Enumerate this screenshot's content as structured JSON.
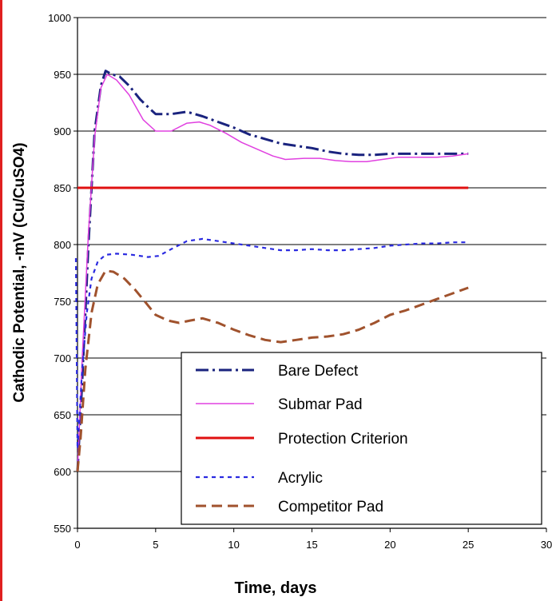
{
  "chart_data": {
    "type": "line",
    "title": "",
    "xlabel": "Time, days",
    "ylabel": "Cathodic Potential, -mV (Cu/CuSO4)",
    "xlim": [
      0,
      30
    ],
    "ylim": [
      550,
      1000
    ],
    "xticks": [
      "0",
      "5",
      "10",
      "15",
      "20",
      "25",
      "30"
    ],
    "yticks": [
      "550",
      "600",
      "650",
      "700",
      "750",
      "800",
      "850",
      "900",
      "950",
      "1000"
    ],
    "grid": "horizontal",
    "legend_position": "bottom-right",
    "series": [
      {
        "name": "Bare Defect",
        "color": "#1a237e",
        "style": "dash-dot",
        "points": [
          [
            0,
            600
          ],
          [
            0.3,
            680
          ],
          [
            0.7,
            800
          ],
          [
            1.1,
            900
          ],
          [
            1.5,
            940
          ],
          [
            1.8,
            953
          ],
          [
            2.2,
            950
          ],
          [
            2.7,
            948
          ],
          [
            3.3,
            940
          ],
          [
            4,
            928
          ],
          [
            4.6,
            920
          ],
          [
            5,
            915
          ],
          [
            6,
            915
          ],
          [
            7,
            917
          ],
          [
            8,
            913
          ],
          [
            9,
            908
          ],
          [
            10,
            903
          ],
          [
            11,
            897
          ],
          [
            12,
            893
          ],
          [
            13,
            889
          ],
          [
            14,
            887
          ],
          [
            15,
            885
          ],
          [
            16,
            882
          ],
          [
            17,
            880
          ],
          [
            18,
            879
          ],
          [
            19,
            879
          ],
          [
            20,
            880
          ],
          [
            21,
            880
          ],
          [
            22,
            880
          ],
          [
            23,
            880
          ],
          [
            24,
            880
          ],
          [
            25,
            880
          ]
        ]
      },
      {
        "name": "Submar Pad",
        "color": "#e040e0",
        "style": "solid",
        "points": [
          [
            0,
            600
          ],
          [
            0.3,
            700
          ],
          [
            0.7,
            810
          ],
          [
            1.1,
            895
          ],
          [
            1.5,
            938
          ],
          [
            1.9,
            950
          ],
          [
            2.5,
            945
          ],
          [
            3.3,
            932
          ],
          [
            4.2,
            910
          ],
          [
            5,
            900
          ],
          [
            6,
            900
          ],
          [
            7,
            907
          ],
          [
            7.8,
            908
          ],
          [
            8.5,
            905
          ],
          [
            9.5,
            898
          ],
          [
            10.5,
            890
          ],
          [
            11.5,
            884
          ],
          [
            12.5,
            878
          ],
          [
            13.3,
            875
          ],
          [
            14.5,
            876
          ],
          [
            15.5,
            876
          ],
          [
            16.5,
            874
          ],
          [
            17.5,
            873
          ],
          [
            18.5,
            873
          ],
          [
            19.5,
            875
          ],
          [
            20.5,
            877
          ],
          [
            22,
            877
          ],
          [
            23,
            877
          ],
          [
            24,
            878
          ],
          [
            25,
            880
          ]
        ]
      },
      {
        "name": "Protection Criterion",
        "color": "#e01010",
        "style": "solid-thick",
        "points": [
          [
            0,
            850
          ],
          [
            25,
            850
          ]
        ]
      },
      {
        "name": "Acrylic",
        "color": "#2a2ae0",
        "style": "dotted",
        "points": [
          [
            -0.1,
            788
          ],
          [
            0,
            620
          ],
          [
            0.3,
            690
          ],
          [
            0.6,
            740
          ],
          [
            0.9,
            770
          ],
          [
            1.3,
            785
          ],
          [
            1.8,
            791
          ],
          [
            2.5,
            792
          ],
          [
            3.5,
            791
          ],
          [
            4.5,
            789
          ],
          [
            5.2,
            790
          ],
          [
            6,
            796
          ],
          [
            7,
            803
          ],
          [
            8,
            805
          ],
          [
            9,
            803
          ],
          [
            10,
            801
          ],
          [
            11,
            799
          ],
          [
            12,
            797
          ],
          [
            13,
            795
          ],
          [
            14,
            795
          ],
          [
            15,
            796
          ],
          [
            16,
            795
          ],
          [
            17,
            795
          ],
          [
            18,
            796
          ],
          [
            19,
            797
          ],
          [
            20,
            799
          ],
          [
            21,
            800
          ],
          [
            22,
            801
          ],
          [
            23,
            801
          ],
          [
            24,
            802
          ],
          [
            25,
            802
          ]
        ]
      },
      {
        "name": "Competitor Pad",
        "color": "#a0522d",
        "style": "dashed",
        "points": [
          [
            0,
            600
          ],
          [
            0.2,
            630
          ],
          [
            0.5,
            690
          ],
          [
            0.9,
            740
          ],
          [
            1.3,
            765
          ],
          [
            1.8,
            777
          ],
          [
            2.3,
            776
          ],
          [
            3,
            770
          ],
          [
            3.7,
            760
          ],
          [
            4.3,
            750
          ],
          [
            5,
            738
          ],
          [
            5.8,
            733
          ],
          [
            6.5,
            731
          ],
          [
            7.2,
            733
          ],
          [
            8,
            735
          ],
          [
            9,
            731
          ],
          [
            10,
            725
          ],
          [
            11,
            720
          ],
          [
            12,
            716
          ],
          [
            13,
            714
          ],
          [
            14,
            716
          ],
          [
            15,
            718
          ],
          [
            16,
            719
          ],
          [
            17,
            721
          ],
          [
            18,
            725
          ],
          [
            19,
            731
          ],
          [
            20,
            738
          ],
          [
            21,
            742
          ],
          [
            22,
            747
          ],
          [
            23,
            752
          ],
          [
            24,
            757
          ],
          [
            25,
            762
          ]
        ]
      }
    ]
  }
}
